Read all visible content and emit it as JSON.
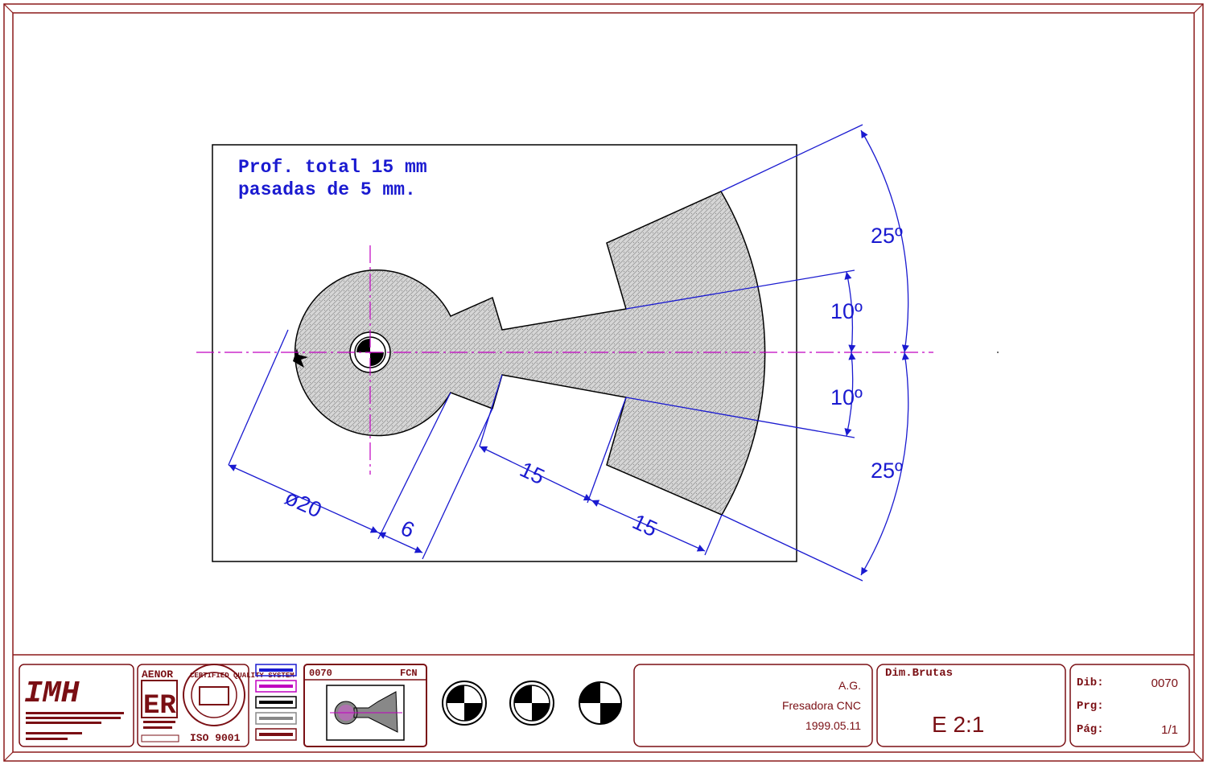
{
  "drawing": {
    "note_line1": "Prof. total 15 mm",
    "note_line2": "pasadas de 5 mm.",
    "dims": {
      "diameter": "ø20",
      "neck": "6",
      "len1": "15",
      "len2": "15",
      "angle_top_outer": "25º",
      "angle_top_inner": "10º",
      "angle_bottom_inner": "10º",
      "angle_bottom_outer": "25º"
    }
  },
  "title_block": {
    "logo_text": "IMH",
    "aenor_label": "AENOR",
    "aenor_mark": "ER",
    "iso_label": "ISO 9001",
    "certified_text": "CERTIFIED QUALITY SYSTEM",
    "thumb_code": "0070",
    "thumb_type": "FCN",
    "author": "A.G.",
    "machine": "Fresadora CNC",
    "date": "1999.05.11",
    "dim_label": "Dim.Brutas",
    "scale": "E 2:1",
    "dib_label": "Dib:",
    "dib_value": "0070",
    "prg_label": "Prg:",
    "prg_value": "",
    "pag_label": "Pág:",
    "pag_value": "1/1"
  },
  "colors": {
    "frame": "#8b1a1a",
    "dimension": "#1a1ad0",
    "centerline": "#c000c0",
    "hatch": "#c8c8c8"
  }
}
